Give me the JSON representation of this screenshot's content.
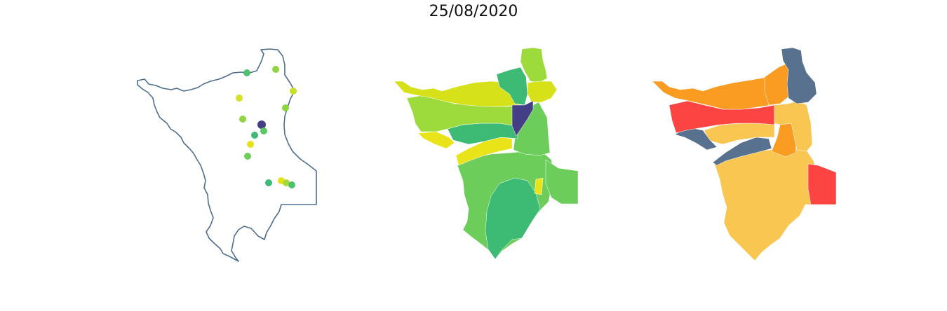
{
  "title": "25/08/2020",
  "maps": [
    {
      "type": "point-map",
      "outline_color": "#4e6e8e",
      "points": [
        {
          "color": "#4cc26e"
        },
        {
          "color": "#8fd444"
        },
        {
          "color": "#c7e024"
        },
        {
          "color": "#d4e02a"
        },
        {
          "color": "#8fd444"
        },
        {
          "color": "#8fd444"
        },
        {
          "color": "#433e85"
        },
        {
          "color": "#5cc863"
        },
        {
          "color": "#3dbb74"
        },
        {
          "color": "#e4e21a"
        },
        {
          "color": "#6ecd5a"
        },
        {
          "color": "#3dbb74"
        },
        {
          "color": "#e4e21a"
        },
        {
          "color": "#a6d93a"
        },
        {
          "color": "#4cc26e"
        }
      ]
    },
    {
      "type": "choropleth",
      "palette": [
        "#433e85",
        "#3dbb74",
        "#6ccd5a",
        "#9ddb3d",
        "#d6e11a",
        "#e8e419"
      ]
    },
    {
      "type": "choropleth",
      "palette": [
        "#58718f",
        "#fa9b22",
        "#fc4443",
        "#f9c651"
      ]
    }
  ]
}
